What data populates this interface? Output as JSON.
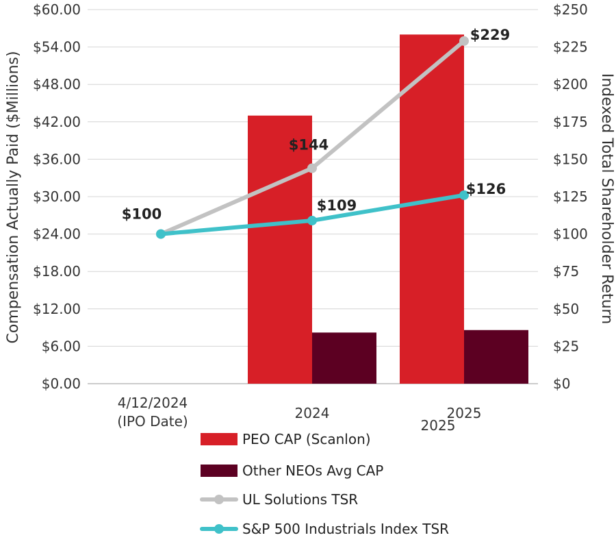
{
  "chart_data": {
    "type": "bar+line",
    "categories": [
      "4/12/2024\n(IPO Date)",
      "2024",
      "2025"
    ],
    "extra_label": "2025",
    "left_axis": {
      "label": "Compensation Actually Paid ($Millions)",
      "ylim": [
        0,
        60
      ],
      "ticks": [
        "$0.00",
        "$6.00",
        "$12.00",
        "$18.00",
        "$24.00",
        "$30.00",
        "$36.00",
        "$42.00",
        "$48.00",
        "$54.00",
        "$60.00"
      ],
      "tick_values": [
        0,
        6,
        12,
        18,
        24,
        30,
        36,
        42,
        48,
        54,
        60
      ]
    },
    "right_axis": {
      "label": "Indexed Total Shareholder Return",
      "ylim": [
        0,
        250
      ],
      "ticks": [
        "$0",
        "$25",
        "$50",
        "$75",
        "$100",
        "$125",
        "$150",
        "$175",
        "$200",
        "$225",
        "$250"
      ],
      "tick_values": [
        0,
        25,
        50,
        75,
        100,
        125,
        150,
        175,
        200,
        225,
        250
      ]
    },
    "bar_series": [
      {
        "name": "PEO CAP (Scanlon)",
        "color": "#d71f27",
        "values": [
          null,
          43.0,
          56.0
        ]
      },
      {
        "name": "Other NEOs Avg CAP",
        "color": "#5c0022",
        "values": [
          null,
          8.2,
          8.6
        ]
      }
    ],
    "line_series": [
      {
        "name": "UL Solutions TSR",
        "color": "#c2c2c2",
        "values": [
          100,
          144,
          229
        ],
        "labels": [
          "$100",
          "$144",
          "$229"
        ]
      },
      {
        "name": "S&P 500 Industrials Index TSR",
        "color": "#3fc1c9",
        "values": [
          100,
          109,
          126
        ],
        "labels": [
          "",
          "$109",
          "$126"
        ]
      }
    ],
    "legend_position": "bottom",
    "grid": true
  }
}
